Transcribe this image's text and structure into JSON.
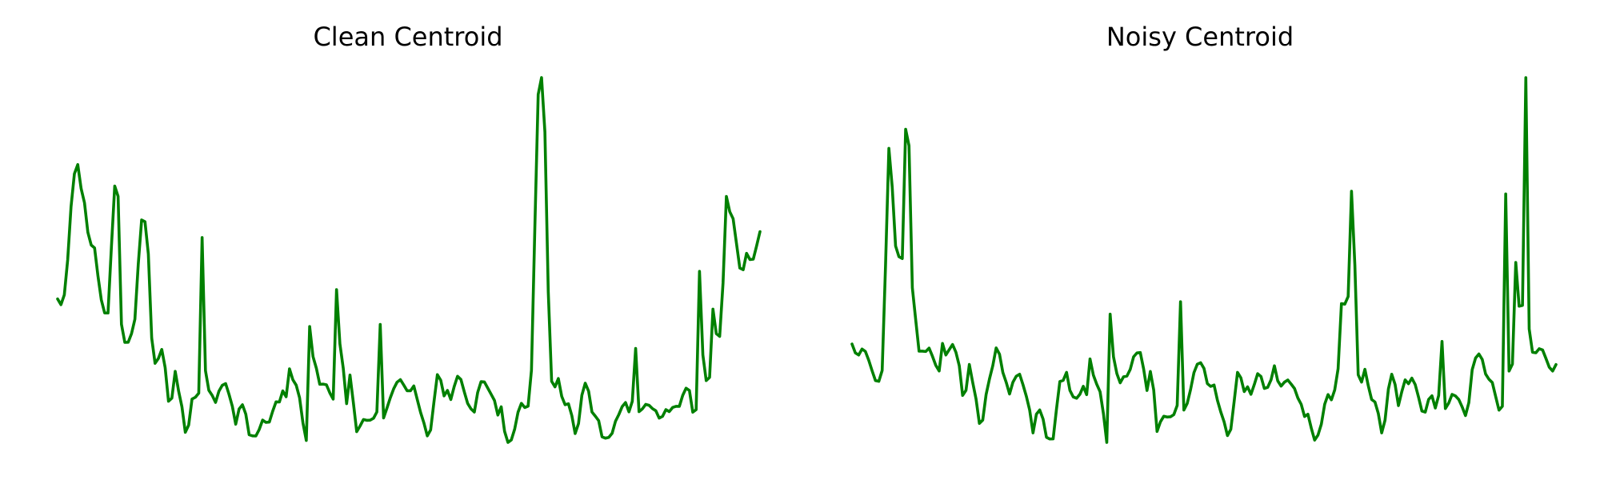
{
  "chart_data": [
    {
      "type": "line",
      "title": "Clean Centroid",
      "xlabel": "",
      "ylabel": "",
      "axes_visible": false,
      "grid": false,
      "color": "#008000",
      "series": [
        {
          "values": [
            0.4008,
            0.3848,
            0.4124,
            0.5103,
            0.6589,
            0.7512,
            0.777,
            0.7098,
            0.67,
            0.5875,
            0.5517,
            0.5438,
            0.4659,
            0.3986,
            0.3616,
            0.3615,
            0.5446,
            0.7168,
            0.6879,
            0.3301,
            0.2794,
            0.2795,
            0.3038,
            0.3442,
            0.4975,
            0.6219,
            0.6171,
            0.5267,
            0.2912,
            0.2206,
            0.2344,
            0.2595,
            0.2088,
            0.1146,
            0.1231,
            0.1982,
            0.1435,
            0.0987,
            0.0276,
            0.0477,
            0.1207,
            0.1257,
            0.137,
            0.5726,
            0.2001,
            0.1452,
            0.1309,
            0.1113,
            0.1427,
            0.1591,
            0.1639,
            0.1339,
            0.1001,
            0.0502,
            0.0927,
            0.1047,
            0.0784,
            0.0208,
            0.0176,
            0.0174,
            0.0356,
            0.0618,
            0.0553,
            0.0563,
            0.0866,
            0.1129,
            0.1124,
            0.1434,
            0.1271,
            0.2051,
            0.1748,
            0.1594,
            0.1242,
            0.0541,
            0.0047,
            0.3235,
            0.2394,
            0.2067,
            0.1621,
            0.1624,
            0.1605,
            0.1379,
            0.1204,
            0.4269,
            0.2752,
            0.2066,
            0.1078,
            0.1879,
            0.111,
            0.0294,
            0.0452,
            0.0633,
            0.0611,
            0.0615,
            0.0668,
            0.0846,
            0.3296,
            0.0678,
            0.0953,
            0.1243,
            0.1494,
            0.1678,
            0.175,
            0.1598,
            0.1439,
            0.1438,
            0.1573,
            0.1202,
            0.0834,
            0.0538,
            0.0176,
            0.0344,
            0.1137,
            0.1889,
            0.1734,
            0.1296,
            0.1449,
            0.1193,
            0.1553,
            0.1843,
            0.1756,
            0.1413,
            0.1087,
            0.0931,
            0.0843,
            0.1393,
            0.1694,
            0.1685,
            0.1514,
            0.1341,
            0.1165,
            0.0759,
            0.0989,
            0.0302,
            -0.0007,
            0.0062,
            0.0364,
            0.0837,
            0.1086,
            0.0969,
            0.1008,
            0.2015,
            0.5984,
            0.9732,
            1.0204,
            0.8678,
            0.4207,
            0.1705,
            0.1548,
            0.1781,
            0.1283,
            0.1048,
            0.1075,
            0.0747,
            0.024,
            0.052,
            0.1314,
            0.165,
            0.1428,
            0.0844,
            0.0728,
            0.0601,
            0.0149,
            0.0112,
            0.0132,
            0.0248,
            0.0585,
            0.0774,
            0.0997,
            0.1108,
            0.0848,
            0.1141,
            0.2624,
            0.0854,
            0.0931,
            0.1057,
            0.1031,
            0.0939,
            0.0879,
            0.0673,
            0.0722,
            0.091,
            0.0854,
            0.0971,
            0.1002,
            0.1002,
            0.1308,
            0.1511,
            0.1446,
            0.0839,
            0.091,
            0.478,
            0.2442,
            0.1723,
            0.1813,
            0.3722,
            0.3035,
            0.296,
            0.4453,
            0.6878,
            0.645,
            0.6255,
            0.5563,
            0.4873,
            0.4826,
            0.5285,
            0.5112,
            0.5123,
            0.5497,
            0.5893
          ]
        }
      ]
    },
    {
      "type": "line",
      "title": "Noisy Centroid",
      "xlabel": "",
      "ylabel": "",
      "axes_visible": false,
      "grid": false,
      "color": "#008000",
      "series": [
        {
          "values": [
            0.2971,
            0.2731,
            0.2672,
            0.2835,
            0.2769,
            0.2529,
            0.2244,
            0.1978,
            0.1958,
            0.2254,
            0.5091,
            0.8283,
            0.7228,
            0.5633,
            0.5344,
            0.5292,
            0.8803,
            0.8355,
            0.4499,
            0.363,
            0.2777,
            0.2778,
            0.2768,
            0.286,
            0.2638,
            0.2392,
            0.2239,
            0.2986,
            0.2674,
            0.2819,
            0.2959,
            0.2748,
            0.2382,
            0.1576,
            0.1714,
            0.2416,
            0.193,
            0.1479,
            0.0817,
            0.0907,
            0.1598,
            0.202,
            0.2384,
            0.2865,
            0.2695,
            0.2199,
            0.1931,
            0.1613,
            0.1934,
            0.2097,
            0.2152,
            0.1868,
            0.1555,
            0.1175,
            0.0559,
            0.1065,
            0.1181,
            0.0933,
            0.0439,
            0.0392,
            0.0396,
            0.1207,
            0.1951,
            0.1985,
            0.2202,
            0.1714,
            0.1533,
            0.1498,
            0.161,
            0.1823,
            0.1597,
            0.2567,
            0.2128,
            0.1881,
            0.1675,
            0.1081,
            0.03,
            0.3783,
            0.2625,
            0.2171,
            0.1917,
            0.2082,
            0.21,
            0.2283,
            0.2624,
            0.273,
            0.2739,
            0.229,
            0.171,
            0.2226,
            0.1722,
            0.0597,
            0.0858,
            0.101,
            0.0989,
            0.0996,
            0.1055,
            0.1304,
            0.412,
            0.1178,
            0.136,
            0.1738,
            0.2192,
            0.2423,
            0.2464,
            0.2308,
            0.1897,
            0.1821,
            0.1859,
            0.1447,
            0.1128,
            0.0859,
            0.0485,
            0.0655,
            0.1414,
            0.2201,
            0.2053,
            0.168,
            0.1808,
            0.1605,
            0.187,
            0.2165,
            0.2089,
            0.1765,
            0.1796,
            0.1999,
            0.2381,
            0.197,
            0.1828,
            0.1936,
            0.1995,
            0.1883,
            0.1764,
            0.1505,
            0.1333,
            0.1002,
            0.1066,
            0.0689,
            0.0363,
            0.0498,
            0.0794,
            0.1335,
            0.1599,
            0.1456,
            0.1728,
            0.2299,
            0.4068,
            0.4054,
            0.4261,
            0.712,
            0.5119,
            0.2136,
            0.1937,
            0.2286,
            0.184,
            0.1467,
            0.1397,
            0.1084,
            0.0558,
            0.0903,
            0.1746,
            0.2151,
            0.1874,
            0.1299,
            0.1677,
            0.1997,
            0.1893,
            0.2045,
            0.187,
            0.1529,
            0.1151,
            0.1123,
            0.1466,
            0.1565,
            0.1234,
            0.1572,
            0.3042,
            0.122,
            0.1368,
            0.1603,
            0.1562,
            0.1465,
            0.1265,
            0.1028,
            0.1381,
            0.2275,
            0.259,
            0.2701,
            0.2552,
            0.2157,
            0.2015,
            0.1925,
            0.1547,
            0.1175,
            0.128,
            0.7046,
            0.2236,
            0.2427,
            0.5186,
            0.3998,
            0.402,
            1.0205,
            0.3378,
            0.2747,
            0.2734,
            0.2844,
            0.281,
            0.2579,
            0.234,
            0.2238,
            0.2414
          ]
        }
      ]
    }
  ]
}
